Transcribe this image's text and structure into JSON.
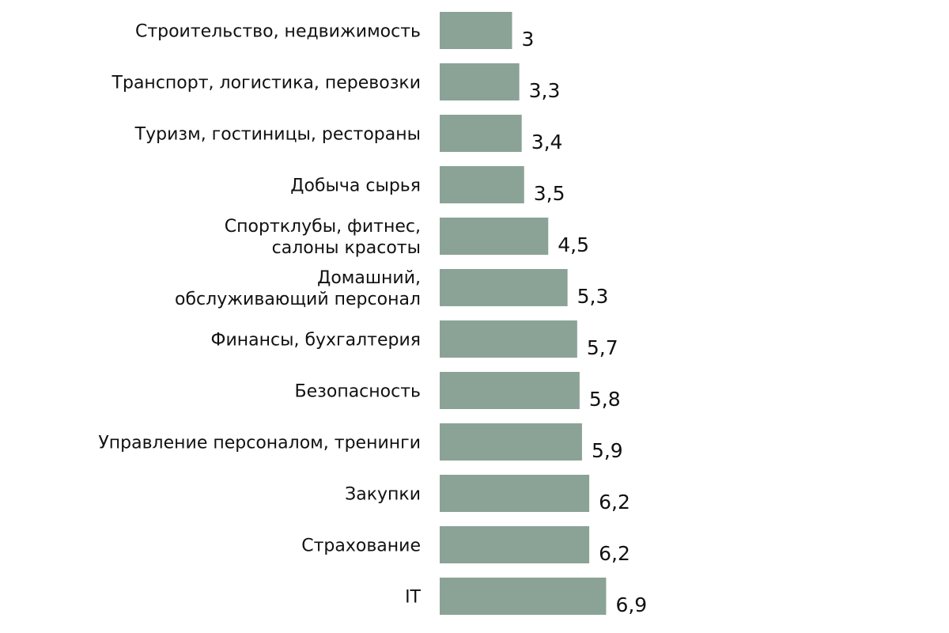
{
  "chart_data": {
    "type": "bar",
    "orientation": "horizontal",
    "bar_color": "#8aa396",
    "categories": [
      [
        "Строительство, недвижимость"
      ],
      [
        "Транспорт, логистика, перевозки"
      ],
      [
        "Туризм, гостиницы, рестораны"
      ],
      [
        "Добыча сырья"
      ],
      [
        "Спортклубы, фитнес,",
        "салоны красоты"
      ],
      [
        "Домашний,",
        "обслуживающий персонал"
      ],
      [
        "Финансы, бухгалтерия"
      ],
      [
        "Безопасность"
      ],
      [
        "Управление персоналом, тренинги"
      ],
      [
        "Закупки"
      ],
      [
        "Страхование"
      ],
      [
        "IT"
      ]
    ],
    "values": [
      3,
      3.3,
      3.4,
      3.5,
      4.5,
      5.3,
      5.7,
      5.8,
      5.9,
      6.2,
      6.2,
      6.9
    ],
    "value_labels": [
      "3",
      "3,3",
      "3,4",
      "3,5",
      "4,5",
      "5,3",
      "5,7",
      "5,8",
      "5,9",
      "6,2",
      "6,2",
      "6,9"
    ],
    "grid": false,
    "legend": "none"
  }
}
